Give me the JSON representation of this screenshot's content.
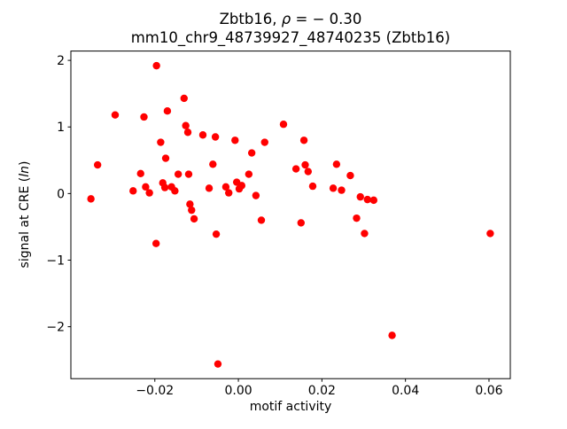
{
  "figure": {
    "title_prefix": "Zbtb16, ",
    "title_rho": "ρ",
    "title_eq": " = − 0.30",
    "title_line2": "mm10_chr9_48739927_48740235 (Zbtb16)",
    "xlabel": "motif activity",
    "ylabel_prefix": "signal at CRE (",
    "ylabel_italic": "ln",
    "ylabel_suffix": ")"
  },
  "chart_data": {
    "type": "scatter",
    "title": "Zbtb16, ρ = − 0.30",
    "subtitle": "mm10_chr9_48739927_48740235 (Zbtb16)",
    "xlabel": "motif activity",
    "ylabel": "signal at CRE (ln)",
    "marker_color": "#ff0000",
    "marker_radius_px": 4.2,
    "grid": false,
    "legend": "none",
    "xlim": [
      -0.0401,
      0.0651
    ],
    "ylim": [
      -2.78,
      2.14
    ],
    "xticks": {
      "values": [
        -0.02,
        0.0,
        0.02,
        0.04,
        0.06
      ],
      "labels": [
        "−0.02",
        "0.00",
        "0.02",
        "0.04",
        "0.06"
      ]
    },
    "yticks": {
      "values": [
        -2,
        -1,
        0,
        1,
        2
      ],
      "labels": [
        "−2",
        "−1",
        "0",
        "1",
        "2"
      ]
    },
    "points": [
      [
        -0.0353,
        -0.08
      ],
      [
        -0.0337,
        0.43
      ],
      [
        -0.0295,
        1.18
      ],
      [
        -0.0252,
        0.04
      ],
      [
        -0.0234,
        0.3
      ],
      [
        -0.0226,
        1.15
      ],
      [
        -0.0222,
        0.1
      ],
      [
        -0.0213,
        0.01
      ],
      [
        -0.0197,
        -0.75
      ],
      [
        -0.0196,
        1.92
      ],
      [
        -0.0186,
        0.77
      ],
      [
        -0.0181,
        0.16
      ],
      [
        -0.0176,
        0.09
      ],
      [
        -0.0174,
        0.53
      ],
      [
        -0.017,
        1.24
      ],
      [
        -0.016,
        0.1
      ],
      [
        -0.0152,
        0.04
      ],
      [
        -0.0144,
        0.29
      ],
      [
        -0.013,
        1.43
      ],
      [
        -0.0126,
        1.02
      ],
      [
        -0.0121,
        0.92
      ],
      [
        -0.0119,
        0.29
      ],
      [
        -0.0116,
        -0.16
      ],
      [
        -0.0112,
        -0.25
      ],
      [
        -0.0106,
        -0.38
      ],
      [
        -0.0085,
        0.88
      ],
      [
        -0.007,
        0.08
      ],
      [
        -0.0061,
        0.44
      ],
      [
        -0.0055,
        0.85
      ],
      [
        -0.0053,
        -0.61
      ],
      [
        -0.0049,
        -2.56
      ],
      [
        -0.003,
        0.1
      ],
      [
        -0.0023,
        0.01
      ],
      [
        -0.0008,
        0.8
      ],
      [
        -0.0004,
        0.17
      ],
      [
        0.0002,
        0.07
      ],
      [
        0.0008,
        0.12
      ],
      [
        0.0025,
        0.29
      ],
      [
        0.0032,
        0.61
      ],
      [
        0.0042,
        -0.03
      ],
      [
        0.0055,
        -0.4
      ],
      [
        0.0063,
        0.77
      ],
      [
        0.0108,
        1.04
      ],
      [
        0.0138,
        0.37
      ],
      [
        0.015,
        -0.44
      ],
      [
        0.0157,
        0.8
      ],
      [
        0.016,
        0.43
      ],
      [
        0.0167,
        0.33
      ],
      [
        0.0178,
        0.11
      ],
      [
        0.0227,
        0.08
      ],
      [
        0.0235,
        0.44
      ],
      [
        0.0247,
        0.05
      ],
      [
        0.0268,
        0.27
      ],
      [
        0.0283,
        -0.37
      ],
      [
        0.0292,
        -0.05
      ],
      [
        0.0302,
        -0.6
      ],
      [
        0.0309,
        -0.09
      ],
      [
        0.0324,
        -0.1
      ],
      [
        0.0368,
        -2.13
      ],
      [
        0.0603,
        -0.6
      ]
    ]
  }
}
